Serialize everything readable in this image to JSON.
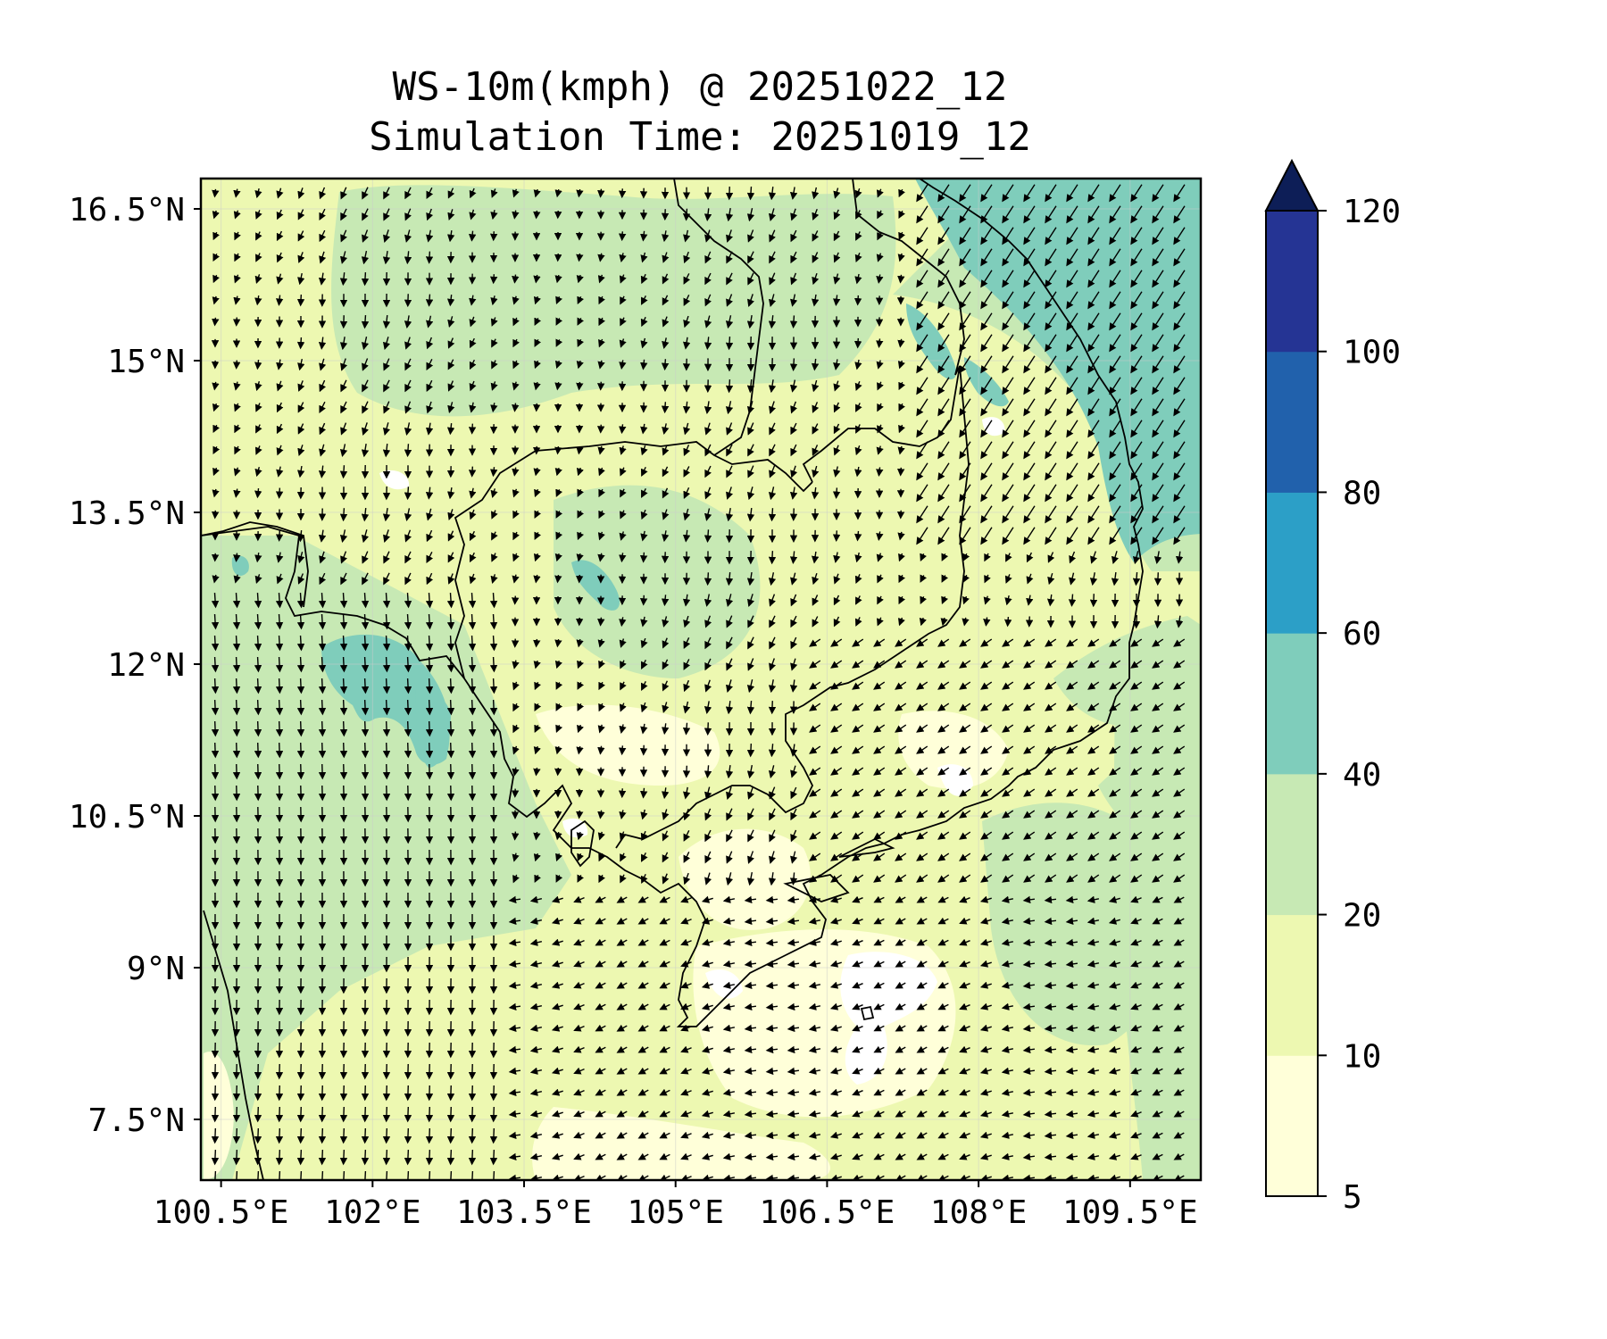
{
  "figure": {
    "title_line1": "WS-10m(kmph) @ 20251022_12",
    "title_line2": "Simulation Time: 20251019_12"
  },
  "chart_data": {
    "type": "heatmap",
    "variable": "WS-10m(kmph)",
    "lon_range": [
      100.3,
      110.2
    ],
    "lat_range": [
      6.9,
      16.8
    ],
    "x_ticks": [
      "100.5°E",
      "102°E",
      "103.5°E",
      "105°E",
      "106.5°E",
      "108°E",
      "109.5°E"
    ],
    "x_tick_values": [
      100.5,
      102,
      103.5,
      105,
      106.5,
      108,
      109.5
    ],
    "y_ticks": [
      "16.5°N",
      "15°N",
      "13.5°N",
      "12°N",
      "10.5°N",
      "9°N",
      "7.5°N"
    ],
    "y_tick_values": [
      16.5,
      15,
      13.5,
      12,
      10.5,
      9,
      7.5
    ],
    "grid": true,
    "colorbar": {
      "levels": [
        5,
        10,
        20,
        40,
        60,
        80,
        100,
        120
      ],
      "labels": [
        "5",
        "10",
        "20",
        "40",
        "60",
        "80",
        "100",
        "120"
      ],
      "colors": [
        "#ffffd9",
        "#edf8b1",
        "#c7e9b4",
        "#7fcdbb",
        "#2c9fc7",
        "#2161ac",
        "#253494"
      ],
      "extend_color": "#0d1e57",
      "extend": "max",
      "placement": "right"
    },
    "colors": {
      "low": "#ffffd9",
      "light": "#edf8b1",
      "mid": "#c7e9b4",
      "high": "#7fcdbb"
    }
  }
}
